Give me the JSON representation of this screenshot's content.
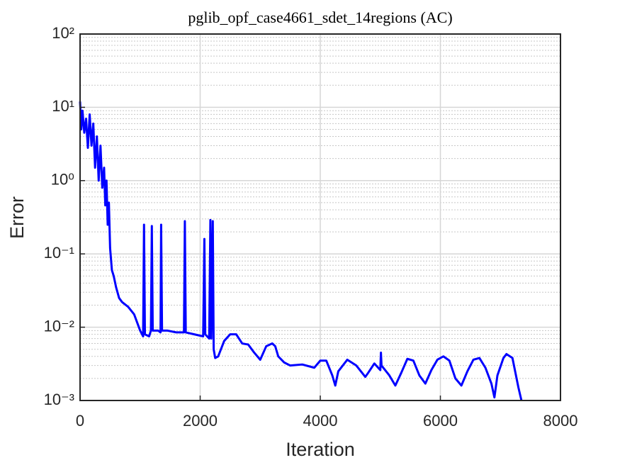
{
  "chart_data": {
    "type": "line",
    "title": "pglib_opf_case4661_sdet_14regions (AC)",
    "x_label": "Iteration",
    "y_label": "Error",
    "log_y": true,
    "grid": true,
    "minor_grid": true,
    "color": "#0000ff",
    "xlim": [
      0,
      8000
    ],
    "xticks": [
      0,
      2000,
      4000,
      6000,
      8000
    ],
    "ylim": [
      0.001,
      100
    ],
    "yticks": [
      {
        "value": 0.001,
        "label": "10⁻³"
      },
      {
        "value": 0.01,
        "label": "10⁻²"
      },
      {
        "value": 0.1,
        "label": "10⁻¹"
      },
      {
        "value": 1,
        "label": "10⁰"
      },
      {
        "value": 10,
        "label": "10¹"
      },
      {
        "value": 100,
        "label": "10²"
      }
    ],
    "x": [
      0,
      20,
      40,
      70,
      100,
      130,
      160,
      190,
      220,
      250,
      280,
      310,
      340,
      370,
      400,
      420,
      440,
      460,
      480,
      500,
      530,
      560,
      600,
      650,
      700,
      800,
      900,
      1000,
      1050,
      1065,
      1080,
      1150,
      1180,
      1195,
      1210,
      1300,
      1340,
      1350,
      1365,
      1450,
      1600,
      1730,
      1745,
      1760,
      1900,
      2050,
      2070,
      2085,
      2150,
      2170,
      2185,
      2210,
      2225,
      2250,
      2300,
      2400,
      2500,
      2600,
      2700,
      2800,
      2900,
      3000,
      3100,
      3200,
      3250,
      3300,
      3400,
      3500,
      3700,
      3900,
      4000,
      4100,
      4200,
      4250,
      4300,
      4450,
      4600,
      4750,
      4800,
      4900,
      5000,
      5010,
      5020,
      5150,
      5250,
      5350,
      5450,
      5550,
      5650,
      5750,
      5850,
      5950,
      6050,
      6150,
      6250,
      6350,
      6450,
      6550,
      6650,
      6750,
      6850,
      6900,
      6950,
      7050,
      7100,
      7200,
      7300,
      7350
    ],
    "values": [
      12,
      5,
      9,
      4.5,
      7,
      2.8,
      8,
      3,
      6,
      1.5,
      4,
      1.0,
      3,
      0.8,
      1.5,
      0.46,
      1.0,
      0.25,
      0.5,
      0.12,
      0.06,
      0.05,
      0.035,
      0.025,
      0.022,
      0.019,
      0.015,
      0.009,
      0.0075,
      0.25,
      0.008,
      0.0075,
      0.009,
      0.24,
      0.009,
      0.009,
      0.0085,
      0.25,
      0.009,
      0.009,
      0.0085,
      0.0085,
      0.28,
      0.0085,
      0.008,
      0.0075,
      0.16,
      0.008,
      0.007,
      0.29,
      0.007,
      0.28,
      0.005,
      0.0038,
      0.004,
      0.0065,
      0.008,
      0.008,
      0.006,
      0.0058,
      0.0045,
      0.0036,
      0.0055,
      0.006,
      0.0055,
      0.004,
      0.0033,
      0.003,
      0.0031,
      0.0028,
      0.0035,
      0.0035,
      0.0022,
      0.0016,
      0.0025,
      0.0036,
      0.003,
      0.0021,
      0.0024,
      0.0032,
      0.0026,
      0.0045,
      0.003,
      0.0022,
      0.0016,
      0.0024,
      0.0037,
      0.0035,
      0.0022,
      0.0017,
      0.0026,
      0.0036,
      0.004,
      0.0035,
      0.002,
      0.0016,
      0.0025,
      0.0036,
      0.0038,
      0.0028,
      0.0017,
      0.0011,
      0.0022,
      0.0038,
      0.0043,
      0.0038,
      0.0015,
      0.001
    ]
  }
}
